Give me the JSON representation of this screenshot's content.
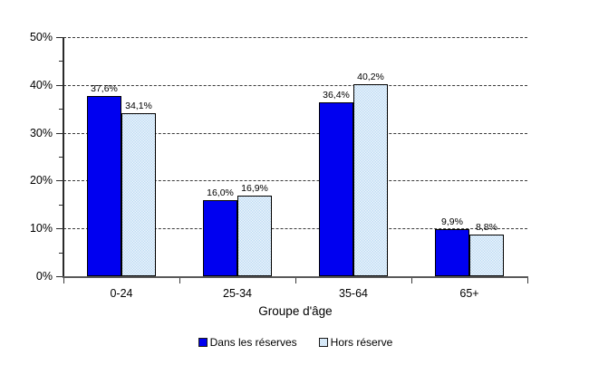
{
  "chart_data": {
    "type": "bar",
    "xlabel": "Groupe d'âge",
    "categories": [
      "0-24",
      "25-34",
      "35-64",
      "65+"
    ],
    "series": [
      {
        "name": "Dans les réserves",
        "values": [
          37.6,
          16.0,
          36.4,
          9.9
        ],
        "value_labels": [
          "37,6%",
          "16,0%",
          "36,4%",
          "9,9%"
        ],
        "color": "#0000F0",
        "pattern": "solid"
      },
      {
        "name": "Hors réserve",
        "values": [
          34.1,
          16.9,
          40.2,
          8.8
        ],
        "value_labels": [
          "34,1%",
          "16,9%",
          "40,2%",
          "8,8%"
        ],
        "color": "#C9E1F5",
        "pattern": "dotted"
      }
    ],
    "ylim": [
      0,
      50
    ],
    "ytick_step": 10,
    "ytick_minor_step": 5,
    "ytick_labels": [
      "0%",
      "10%",
      "20%",
      "30%",
      "40%",
      "50%"
    ],
    "grid": "horizontal-dashed",
    "legend_position": "bottom",
    "grid_color": "#3b3b3b",
    "bar_border_color": "#000000"
  }
}
